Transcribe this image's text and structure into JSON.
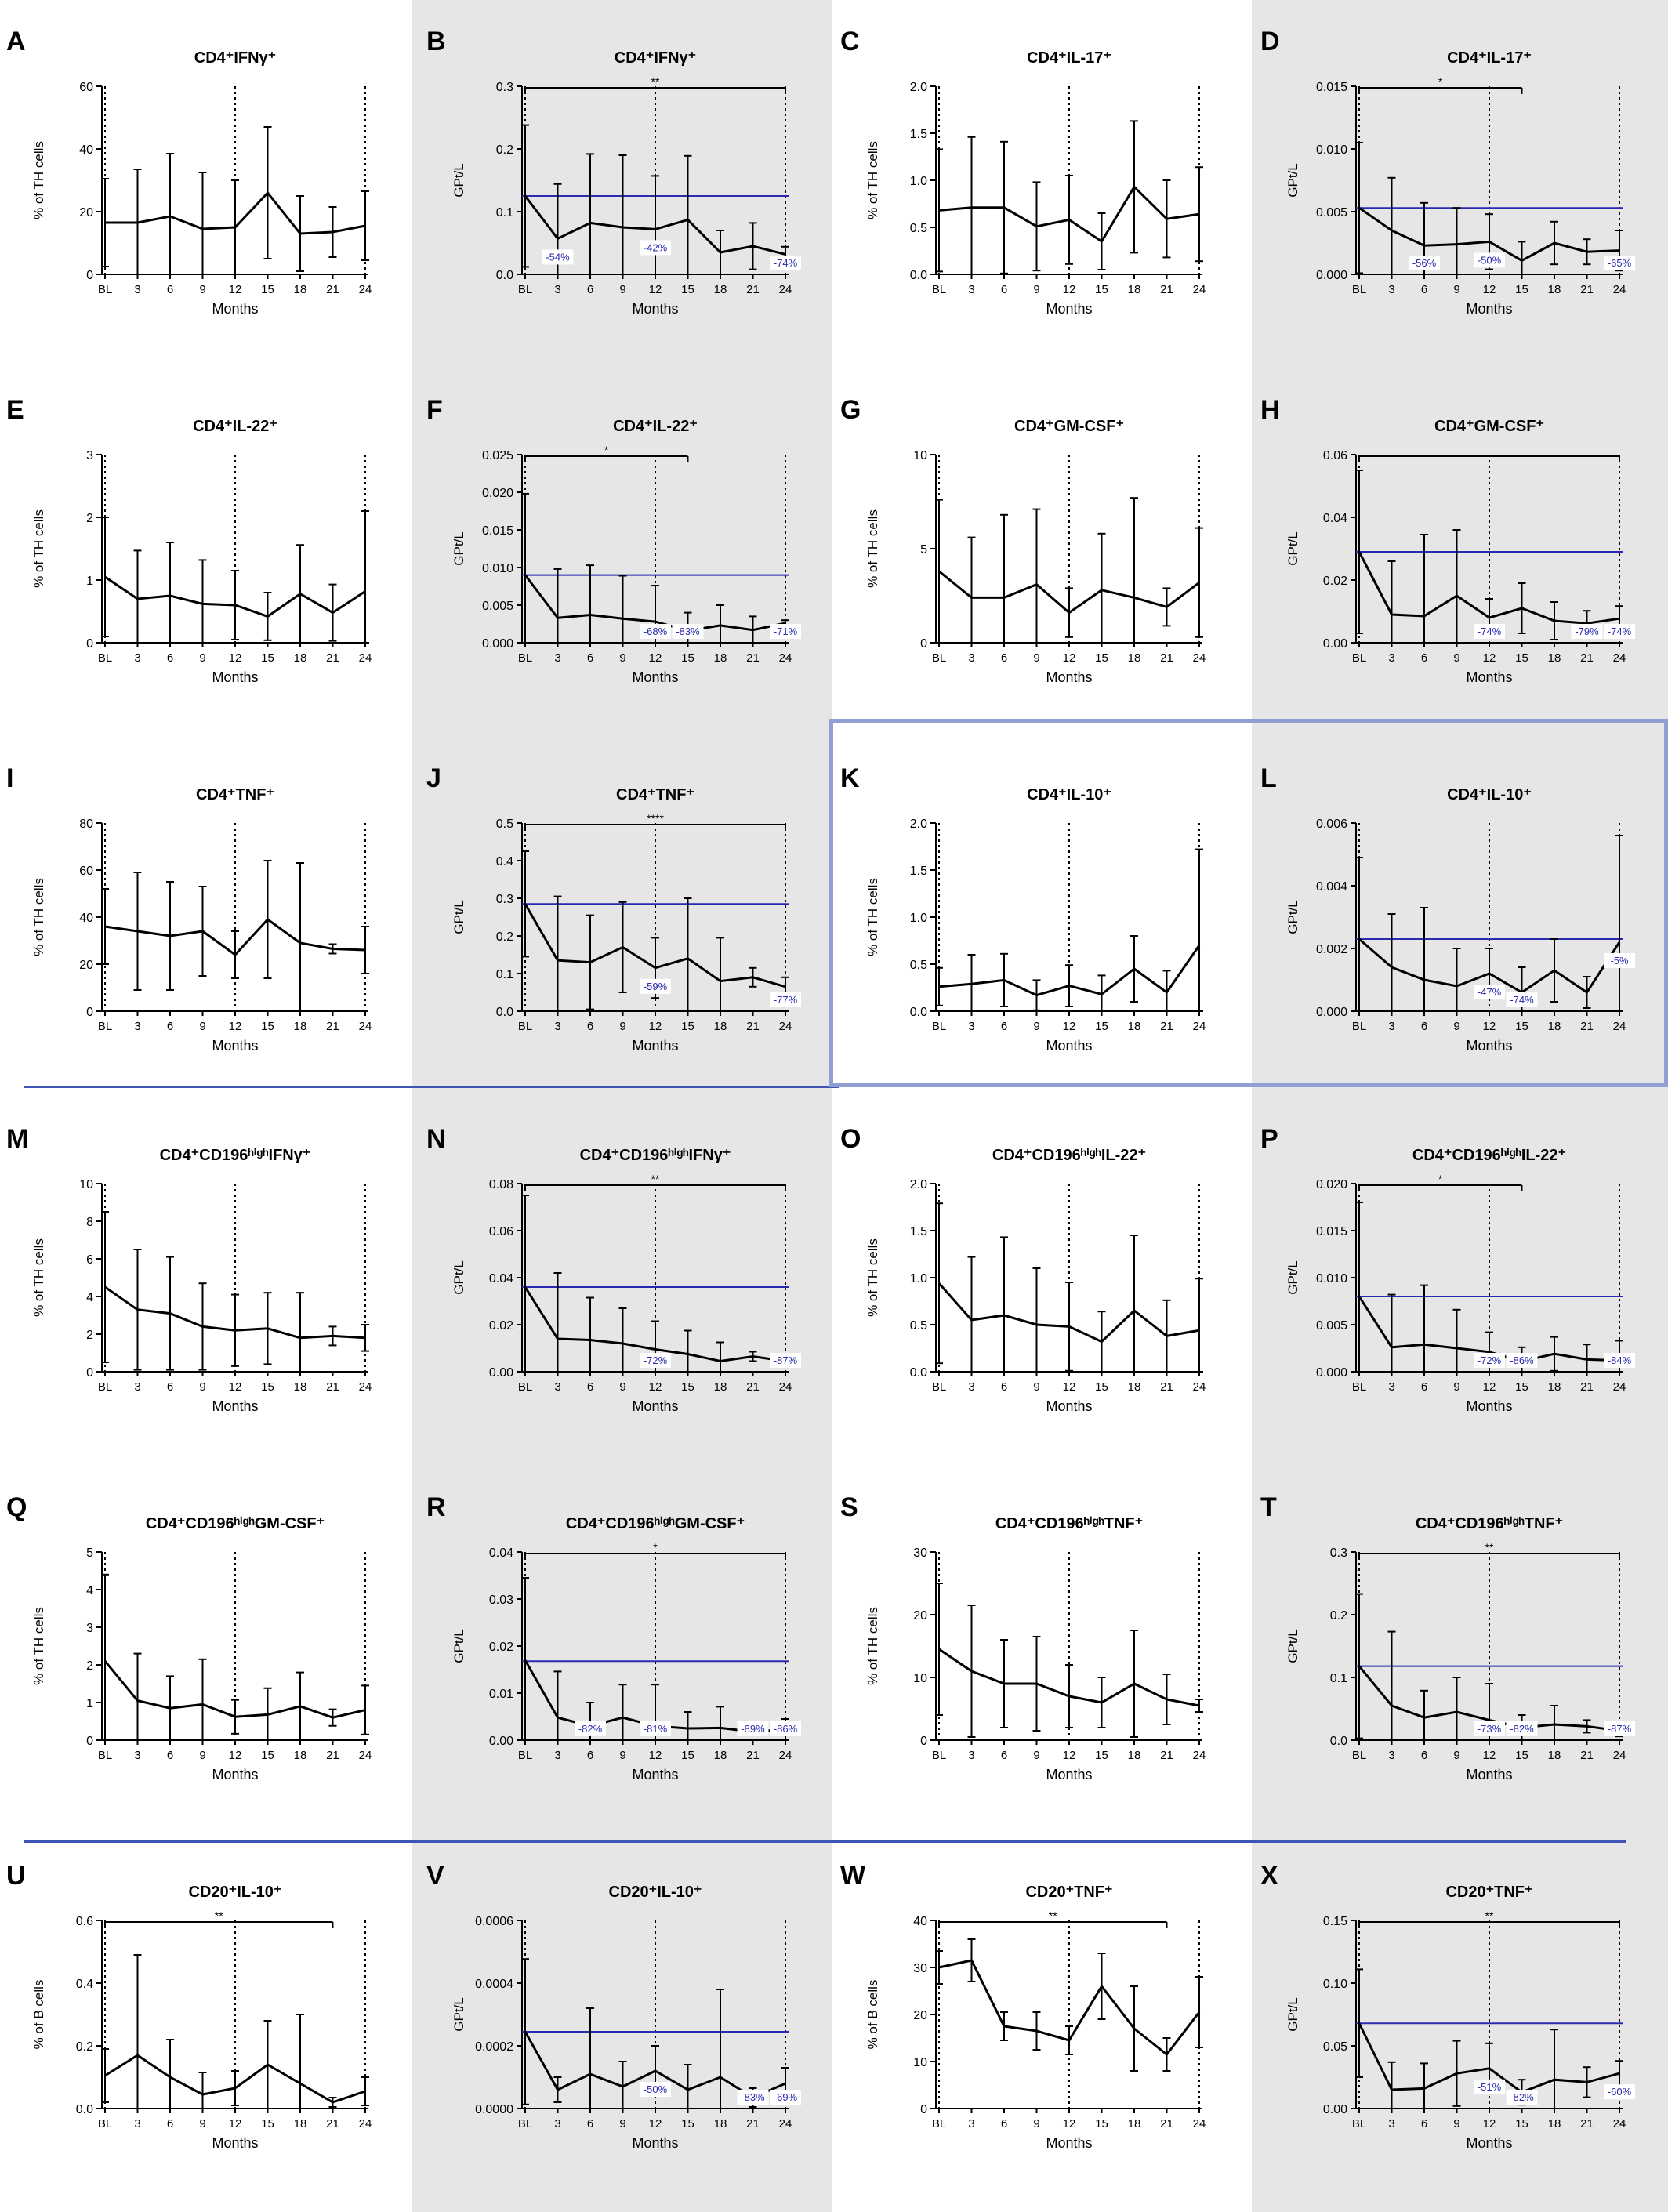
{
  "figure": {
    "colors": {
      "line": "#000000",
      "reference": "#2a2ab0",
      "annotation": "#2a2ab0",
      "separator": "#3e55b4",
      "highlight": "#8f9fd3",
      "shade": "#e6e6e6"
    },
    "months": [
      "BL",
      "3",
      "6",
      "9",
      "12",
      "15",
      "18",
      "21",
      "24"
    ],
    "xlabel": "Months"
  },
  "chart_data": [
    {
      "panel": "A",
      "type": "line",
      "title": "CD4⁺IFNγ⁺",
      "ylabel": "% of TH cells",
      "yticks": [
        "0",
        "20",
        "40",
        "60"
      ],
      "ylim": [
        0,
        60
      ],
      "values": [
        16.5,
        16.5,
        18.5,
        14.5,
        15,
        26,
        13,
        13.5,
        15.5
      ],
      "errors": [
        14,
        17,
        20,
        18,
        15,
        21,
        12,
        8,
        11
      ]
    },
    {
      "panel": "B",
      "type": "line",
      "title": "CD4⁺IFNγ⁺",
      "ylabel": "GPt/L",
      "yticks": [
        "0.0",
        "0.1",
        "0.2",
        "0.3"
      ],
      "ylim": [
        0,
        0.3
      ],
      "values": [
        0.125,
        0.057,
        0.082,
        0.075,
        0.072,
        0.087,
        0.035,
        0.045,
        0.032
      ],
      "errors": [
        0.113,
        0.087,
        0.11,
        0.115,
        0.085,
        0.102,
        0.035,
        0.037,
        0.012
      ],
      "reference": 0.125,
      "sig": {
        "text": "**",
        "from": 0,
        "to": 8
      },
      "annotations": [
        {
          "i": 1,
          "text": "-54%"
        },
        {
          "i": 4,
          "text": "-42%"
        },
        {
          "i": 8,
          "text": "-74%"
        }
      ]
    },
    {
      "panel": "C",
      "type": "line",
      "title": "CD4⁺IL-17⁺",
      "ylabel": "% of TH cells",
      "yticks": [
        "0.0",
        "0.5",
        "1.0",
        "1.5",
        "2.0"
      ],
      "ylim": [
        0,
        2
      ],
      "values": [
        0.68,
        0.71,
        0.71,
        0.51,
        0.58,
        0.35,
        0.93,
        0.59,
        0.64
      ],
      "errors": [
        0.65,
        0.75,
        0.7,
        0.47,
        0.47,
        0.3,
        0.7,
        0.41,
        0.5
      ]
    },
    {
      "panel": "D",
      "type": "line",
      "title": "CD4⁺IL-17⁺",
      "ylabel": "GPt/L",
      "yticks": [
        "0.000",
        "0.005",
        "0.010",
        "0.015"
      ],
      "ylim": [
        0,
        0.015
      ],
      "values": [
        0.0053,
        0.0035,
        0.0023,
        0.0024,
        0.0026,
        0.0011,
        0.0025,
        0.0018,
        0.0019
      ],
      "errors": [
        0.0052,
        0.0042,
        0.0034,
        0.0029,
        0.0022,
        0.0015,
        0.0017,
        0.001,
        0.0016
      ],
      "reference": 0.0053,
      "sig": {
        "text": "*",
        "from": 0,
        "to": 5
      },
      "annotations": [
        {
          "i": 2,
          "text": "-56%"
        },
        {
          "i": 4,
          "text": "-50%"
        },
        {
          "i": 8,
          "text": "-65%"
        }
      ]
    },
    {
      "panel": "E",
      "type": "line",
      "title": "CD4⁺IL-22⁺",
      "ylabel": "% of TH cells",
      "yticks": [
        "0",
        "1",
        "2",
        "3"
      ],
      "ylim": [
        0,
        3
      ],
      "values": [
        1.05,
        0.7,
        0.75,
        0.62,
        0.6,
        0.42,
        0.78,
        0.48,
        0.82
      ],
      "errors": [
        0.95,
        0.77,
        0.85,
        0.7,
        0.55,
        0.38,
        0.78,
        0.45,
        1.28
      ]
    },
    {
      "panel": "F",
      "type": "line",
      "title": "CD4⁺IL-22⁺",
      "ylabel": "GPt/L",
      "yticks": [
        "0.000",
        "0.005",
        "0.010",
        "0.015",
        "0.020",
        "0.025"
      ],
      "ylim": [
        0,
        0.025
      ],
      "values": [
        0.009,
        0.0033,
        0.0037,
        0.0032,
        0.0028,
        0.0016,
        0.0023,
        0.0017,
        0.0026
      ],
      "errors": [
        0.0108,
        0.0065,
        0.0066,
        0.0057,
        0.0048,
        0.0024,
        0.0027,
        0.0018,
        0.0004
      ],
      "reference": 0.009,
      "sig": {
        "text": "*",
        "from": 0,
        "to": 5
      },
      "annotations": [
        {
          "i": 4,
          "text": "-68%"
        },
        {
          "i": 5,
          "text": "-83%"
        },
        {
          "i": 8,
          "text": "-71%"
        }
      ]
    },
    {
      "panel": "G",
      "type": "line",
      "title": "CD4⁺GM-CSF⁺",
      "ylabel": "% of TH cells",
      "yticks": [
        "0",
        "5",
        "10"
      ],
      "ylim": [
        0,
        10
      ],
      "values": [
        3.8,
        2.4,
        2.4,
        3.1,
        1.6,
        2.8,
        2.4,
        1.9,
        3.2
      ],
      "errors": [
        3.8,
        3.2,
        4.4,
        4,
        1.3,
        3,
        5.3,
        1,
        2.9
      ]
    },
    {
      "panel": "H",
      "type": "line",
      "title": "CD4⁺GM-CSF⁺",
      "ylabel": "GPt/L",
      "yticks": [
        "0.00",
        "0.02",
        "0.04",
        "0.06"
      ],
      "ylim": [
        0,
        0.06
      ],
      "values": [
        0.029,
        0.009,
        0.0085,
        0.015,
        0.008,
        0.011,
        0.007,
        0.0062,
        0.0077
      ],
      "errors": [
        0.026,
        0.017,
        0.026,
        0.021,
        0.006,
        0.008,
        0.006,
        0.004,
        0.004
      ],
      "reference": 0.029,
      "sig": {
        "text": "",
        "from": 0,
        "to": 8
      },
      "annotations": [
        {
          "i": 4,
          "text": "-74%"
        },
        {
          "i": 7,
          "text": "-79%"
        },
        {
          "i": 8,
          "text": "-74%"
        }
      ]
    },
    {
      "panel": "I",
      "type": "line",
      "title": "CD4⁺TNF⁺",
      "ylabel": "% of TH cells",
      "yticks": [
        "0",
        "20",
        "40",
        "60",
        "80"
      ],
      "ylim": [
        0,
        80
      ],
      "values": [
        36,
        34,
        32,
        34,
        24,
        39,
        29,
        26.5,
        26
      ],
      "errors": [
        16,
        25,
        23,
        19,
        10,
        25,
        34,
        2,
        10
      ]
    },
    {
      "panel": "J",
      "type": "line",
      "title": "CD4⁺TNF⁺",
      "ylabel": "GPt/L",
      "yticks": [
        "0.0",
        "0.1",
        "0.2",
        "0.3",
        "0.4",
        "0.5"
      ],
      "ylim": [
        0,
        0.5
      ],
      "values": [
        0.285,
        0.135,
        0.13,
        0.17,
        0.115,
        0.14,
        0.08,
        0.09,
        0.065
      ],
      "errors": [
        0.14,
        0.17,
        0.125,
        0.12,
        0.08,
        0.16,
        0.115,
        0.025,
        0.025
      ],
      "reference": 0.285,
      "sig": {
        "text": "****",
        "from": 0,
        "to": 8
      },
      "annotations": [
        {
          "i": 4,
          "text": "-59%"
        },
        {
          "i": 8,
          "text": "-77%"
        }
      ]
    },
    {
      "panel": "K",
      "type": "line",
      "title": "CD4⁺IL-10⁺",
      "ylabel": "% of TH cells",
      "yticks": [
        "0.0",
        "0.5",
        "1.0",
        "1.5",
        "2.0"
      ],
      "ylim": [
        0,
        2
      ],
      "values": [
        0.26,
        0.29,
        0.33,
        0.17,
        0.27,
        0.18,
        0.45,
        0.2,
        0.7
      ],
      "errors": [
        0.2,
        0.31,
        0.28,
        0.16,
        0.22,
        0.2,
        0.35,
        0.23,
        1.02
      ]
    },
    {
      "panel": "L",
      "type": "line",
      "title": "CD4⁺IL-10⁺",
      "ylabel": "GPt/L",
      "yticks": [
        "0.000",
        "0.002",
        "0.004",
        "0.006"
      ],
      "ylim": [
        0,
        0.006
      ],
      "values": [
        0.0023,
        0.0014,
        0.001,
        0.0008,
        0.0012,
        0.0006,
        0.0013,
        0.0006,
        0.0022
      ],
      "errors": [
        0.0026,
        0.0017,
        0.0023,
        0.0012,
        0.0008,
        0.0008,
        0.001,
        0.0005,
        0.0034
      ],
      "reference": 0.0023,
      "annotations": [
        {
          "i": 4,
          "text": "-47%"
        },
        {
          "i": 5,
          "text": "-74%"
        },
        {
          "i": 8,
          "text": "-5%"
        }
      ]
    },
    {
      "panel": "M",
      "type": "line",
      "title": "CD4⁺CD196ʰⁱᵍʰIFNγ⁺",
      "ylabel": "% of TH cells",
      "yticks": [
        "0",
        "2",
        "4",
        "6",
        "8",
        "10"
      ],
      "ylim": [
        0,
        10
      ],
      "values": [
        4.5,
        3.3,
        3.1,
        2.4,
        2.2,
        2.3,
        1.8,
        1.9,
        1.8
      ],
      "errors": [
        4,
        3.2,
        3,
        2.3,
        1.9,
        1.9,
        2.4,
        0.5,
        0.7
      ]
    },
    {
      "panel": "N",
      "type": "line",
      "title": "CD4⁺CD196ʰⁱᵍʰIFNγ⁺",
      "ylabel": "GPt/L",
      "yticks": [
        "0.00",
        "0.02",
        "0.04",
        "0.06",
        "0.08"
      ],
      "ylim": [
        0,
        0.08
      ],
      "values": [
        0.036,
        0.014,
        0.0135,
        0.012,
        0.0095,
        0.0075,
        0.0045,
        0.0065,
        0.0045
      ],
      "errors": [
        0.039,
        0.028,
        0.018,
        0.015,
        0.012,
        0.01,
        0.008,
        0.002,
        0.002
      ],
      "reference": 0.036,
      "sig": {
        "text": "**",
        "from": 0,
        "to": 8
      },
      "annotations": [
        {
          "i": 4,
          "text": "-72%"
        },
        {
          "i": 8,
          "text": "-87%"
        }
      ]
    },
    {
      "panel": "O",
      "type": "line",
      "title": "CD4⁺CD196ʰⁱᵍʰIL-22⁺",
      "ylabel": "% of TH cells",
      "yticks": [
        "0.0",
        "0.5",
        "1.0",
        "1.5",
        "2.0"
      ],
      "ylim": [
        0,
        2
      ],
      "values": [
        0.94,
        0.55,
        0.6,
        0.5,
        0.48,
        0.32,
        0.65,
        0.38,
        0.44
      ],
      "errors": [
        0.85,
        0.67,
        0.83,
        0.6,
        0.47,
        0.32,
        0.8,
        0.38,
        0.55
      ]
    },
    {
      "panel": "P",
      "type": "line",
      "title": "CD4⁺CD196ʰⁱᵍʰIL-22⁺",
      "ylabel": "GPt/L",
      "yticks": [
        "0.000",
        "0.005",
        "0.010",
        "0.015",
        "0.020"
      ],
      "ylim": [
        0,
        0.02
      ],
      "values": [
        0.008,
        0.0026,
        0.0029,
        0.0025,
        0.0021,
        0.0011,
        0.0019,
        0.0013,
        0.0012
      ],
      "errors": [
        0.01,
        0.0056,
        0.0063,
        0.0041,
        0.0021,
        0.0015,
        0.0018,
        0.0016,
        0.0021
      ],
      "reference": 0.008,
      "sig": {
        "text": "*",
        "from": 0,
        "to": 5
      },
      "annotations": [
        {
          "i": 4,
          "text": "-72%"
        },
        {
          "i": 5,
          "text": "-86%"
        },
        {
          "i": 8,
          "text": "-84%"
        }
      ]
    },
    {
      "panel": "Q",
      "type": "line",
      "title": "CD4⁺CD196ʰⁱᵍʰGM-CSF⁺",
      "ylabel": "% of TH cells",
      "yticks": [
        "0",
        "1",
        "2",
        "3",
        "4",
        "5"
      ],
      "ylim": [
        0,
        5
      ],
      "values": [
        2.1,
        1.05,
        0.85,
        0.95,
        0.62,
        0.68,
        0.9,
        0.6,
        0.8
      ],
      "errors": [
        2.3,
        1.25,
        0.85,
        1.2,
        0.45,
        0.7,
        0.9,
        0.22,
        0.65
      ]
    },
    {
      "panel": "R",
      "type": "line",
      "title": "CD4⁺CD196ʰⁱᵍʰGM-CSF⁺",
      "ylabel": "GPt/L",
      "yticks": [
        "0.00",
        "0.01",
        "0.02",
        "0.03",
        "0.04"
      ],
      "ylim": [
        0,
        0.04
      ],
      "values": [
        0.017,
        0.0048,
        0.003,
        0.0048,
        0.003,
        0.0025,
        0.0026,
        0.0018,
        0.0023
      ],
      "errors": [
        0.0175,
        0.0098,
        0.005,
        0.007,
        0.0088,
        0.0035,
        0.0045,
        0.0005,
        0.0022
      ],
      "reference": 0.0168,
      "sig": {
        "text": "*",
        "from": 0,
        "to": 8
      },
      "annotations": [
        {
          "i": 2,
          "text": "-82%"
        },
        {
          "i": 4,
          "text": "-81%"
        },
        {
          "i": 7,
          "text": "-89%"
        },
        {
          "i": 8,
          "text": "-86%"
        }
      ]
    },
    {
      "panel": "S",
      "type": "line",
      "title": "CD4⁺CD196ʰⁱᵍʰTNF⁺",
      "ylabel": "% of TH cells",
      "yticks": [
        "0",
        "10",
        "20",
        "30"
      ],
      "ylim": [
        0,
        30
      ],
      "values": [
        14.5,
        11,
        9,
        9,
        7,
        6,
        9,
        6.5,
        5.5
      ],
      "errors": [
        10.5,
        10.5,
        7,
        7.5,
        5,
        4,
        8.5,
        4,
        1
      ]
    },
    {
      "panel": "T",
      "type": "line",
      "title": "CD4⁺CD196ʰⁱᵍʰTNF⁺",
      "ylabel": "GPt/L",
      "yticks": [
        "0.0",
        "0.1",
        "0.2",
        "0.3"
      ],
      "ylim": [
        0,
        0.3
      ],
      "values": [
        0.118,
        0.055,
        0.036,
        0.045,
        0.032,
        0.02,
        0.025,
        0.022,
        0.015
      ],
      "errors": [
        0.115,
        0.118,
        0.043,
        0.055,
        0.058,
        0.02,
        0.03,
        0.01,
        0.009
      ],
      "reference": 0.118,
      "sig": {
        "text": "**",
        "from": 0,
        "to": 8
      },
      "annotations": [
        {
          "i": 4,
          "text": "-73%"
        },
        {
          "i": 5,
          "text": "-82%"
        },
        {
          "i": 8,
          "text": "-87%"
        }
      ]
    },
    {
      "panel": "U",
      "type": "line",
      "title": "CD20⁺IL-10⁺",
      "ylabel": "% of B cells",
      "yticks": [
        "0.0",
        "0.2",
        "0.4",
        "0.6"
      ],
      "ylim": [
        0,
        0.6
      ],
      "values": [
        0.105,
        0.17,
        0.1,
        0.045,
        0.065,
        0.14,
        0.08,
        0.02,
        0.055
      ],
      "errors": [
        0.085,
        0.32,
        0.12,
        0.07,
        0.055,
        0.14,
        0.22,
        0.015,
        0.045
      ],
      "sig": {
        "text": "**",
        "from": 0,
        "to": 7
      }
    },
    {
      "panel": "V",
      "type": "line",
      "title": "CD20⁺IL-10⁺",
      "ylabel": "GPt/L",
      "yticks": [
        "0.0000",
        "0.0002",
        "0.0004",
        "0.0006"
      ],
      "ylim": [
        0,
        0.0006
      ],
      "values": [
        0.000245,
        6e-05,
        0.00011,
        7e-05,
        0.00012,
        6e-05,
        0.0001,
        3.5e-05,
        8e-05
      ],
      "errors": [
        0.000232,
        4e-05,
        0.00021,
        8e-05,
        8e-05,
        8e-05,
        0.00028,
        3e-05,
        5e-05
      ],
      "reference": 0.000245,
      "annotations": [
        {
          "i": 4,
          "text": "-50%"
        },
        {
          "i": 7,
          "text": "-83%"
        },
        {
          "i": 8,
          "text": "-69%"
        }
      ]
    },
    {
      "panel": "W",
      "type": "line",
      "title": "CD20⁺TNF⁺",
      "ylabel": "% of B cells",
      "yticks": [
        "0",
        "10",
        "20",
        "30",
        "40"
      ],
      "ylim": [
        0,
        40
      ],
      "values": [
        30,
        31.5,
        17.5,
        16.5,
        14.5,
        26,
        17,
        11.5,
        20.5
      ],
      "errors": [
        3.5,
        4.5,
        3,
        4,
        3,
        7,
        9,
        3.5,
        7.5
      ],
      "sig": {
        "text": "**",
        "from": 0,
        "to": 7
      }
    },
    {
      "panel": "X",
      "type": "line",
      "title": "CD20⁺TNF⁺",
      "ylabel": "GPt/L",
      "yticks": [
        "0.00",
        "0.05",
        "0.10",
        "0.15"
      ],
      "ylim": [
        0,
        0.15
      ],
      "values": [
        0.068,
        0.015,
        0.016,
        0.028,
        0.032,
        0.013,
        0.023,
        0.021,
        0.028
      ],
      "errors": [
        0.043,
        0.022,
        0.02,
        0.026,
        0.02,
        0.01,
        0.04,
        0.012,
        0.01
      ],
      "reference": 0.068,
      "sig": {
        "text": "**",
        "from": 0,
        "to": 8
      },
      "annotations": [
        {
          "i": 4,
          "text": "-51%"
        },
        {
          "i": 5,
          "text": "-82%"
        },
        {
          "i": 8,
          "text": "-60%"
        }
      ]
    }
  ]
}
